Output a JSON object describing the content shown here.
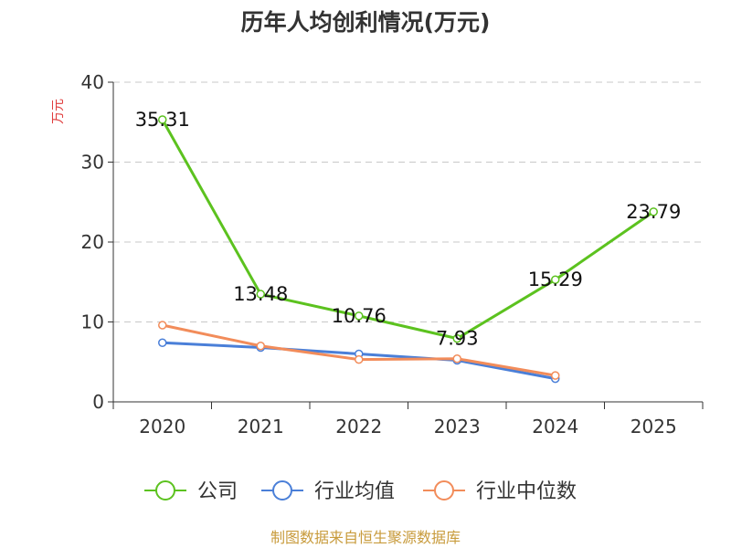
{
  "chart_data": {
    "type": "line",
    "title": "历年人均创利情况(万元)",
    "xlabel": "",
    "ylabel": "万元",
    "categories": [
      "2020",
      "2021",
      "2022",
      "2023",
      "2024",
      "2025"
    ],
    "ylim": [
      0,
      40
    ],
    "yticks": [
      0,
      10,
      20,
      30,
      40
    ],
    "grid": true,
    "legend_position": "bottom",
    "series": [
      {
        "name": "公司",
        "color": "#5cc21f",
        "values": [
          35.31,
          13.48,
          10.76,
          7.93,
          15.29,
          23.79
        ],
        "labels": [
          "35.31",
          "13.48",
          "10.76",
          "7.93",
          "15.29",
          "23.79"
        ]
      },
      {
        "name": "行业均值",
        "color": "#4a7fd8",
        "values": [
          7.4,
          6.8,
          6.0,
          5.2,
          2.9,
          null
        ]
      },
      {
        "name": "行业中位数",
        "color": "#f28c5a",
        "values": [
          9.6,
          7.0,
          5.3,
          5.4,
          3.3,
          null
        ]
      }
    ],
    "source": "制图数据来自恒生聚源数据库"
  }
}
